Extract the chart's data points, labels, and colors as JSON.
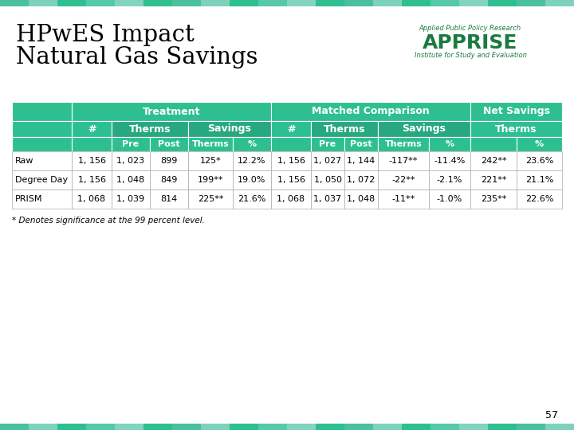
{
  "title_line1": "HPwES Impact",
  "title_line2": "Natural Gas Savings",
  "teal": "#2EBF91",
  "dark_teal": "#28A87E",
  "white": "#FFFFFF",
  "black": "#000000",
  "row_data": [
    {
      "label": "Raw",
      "t_n": "1, 156",
      "t_pre": "1, 023",
      "t_post": "899",
      "t_sav_therms": "125*",
      "t_sav_pct": "12.2%",
      "c_n": "1, 156",
      "c_pre": "1, 027",
      "c_post": "1, 144",
      "c_sav_therms": "-117**",
      "c_sav_pct": "-11.4%",
      "ns_therms": "242**",
      "ns_pct": "23.6%"
    },
    {
      "label": "Degree Day",
      "t_n": "1, 156",
      "t_pre": "1, 048",
      "t_post": "849",
      "t_sav_therms": "199**",
      "t_sav_pct": "19.0%",
      "c_n": "1, 156",
      "c_pre": "1, 050",
      "c_post": "1, 072",
      "c_sav_therms": "-22**",
      "c_sav_pct": "-2.1%",
      "ns_therms": "221**",
      "ns_pct": "21.1%"
    },
    {
      "label": "PRISM",
      "t_n": "1, 068",
      "t_pre": "1, 039",
      "t_post": "814",
      "t_sav_therms": "225**",
      "t_sav_pct": "21.6%",
      "c_n": "1, 068",
      "c_pre": "1, 037",
      "c_post": "1, 048",
      "c_sav_therms": "-11**",
      "c_sav_pct": "-1.0%",
      "ns_therms": "235**",
      "ns_pct": "22.6%"
    }
  ],
  "footnote": "* Denotes significance at the 99 percent level.",
  "page_number": "57"
}
